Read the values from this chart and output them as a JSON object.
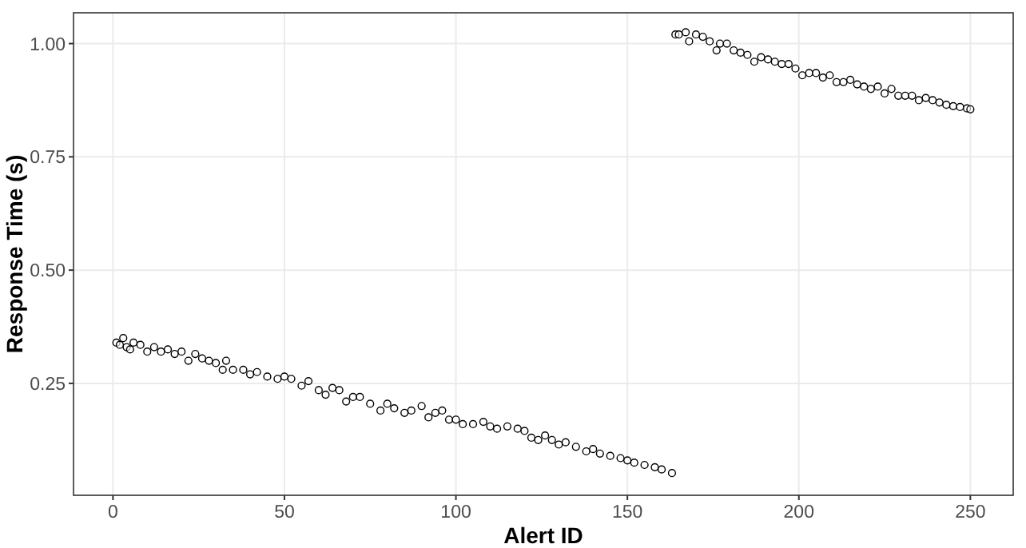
{
  "chart_data": {
    "type": "scatter",
    "xlabel": "Alert ID",
    "ylabel": "Response Time (s)",
    "xlim": [
      -11.5,
      262.5
    ],
    "ylim": [
      0.003,
      1.068
    ],
    "xticks": [
      0,
      50,
      100,
      150,
      200,
      250
    ],
    "yticks": [
      {
        "value": 0.25,
        "label": "0.25"
      },
      {
        "value": 0.5,
        "label": "0.50"
      },
      {
        "value": 0.75,
        "label": "0.75"
      },
      {
        "value": 1,
        "label": "1.00"
      }
    ],
    "grid": true,
    "marker": "circle",
    "series": [
      {
        "color": "#000000",
        "x": [
          1,
          2,
          3,
          4,
          5,
          6,
          8,
          10,
          12,
          14,
          16,
          18,
          20,
          22,
          24,
          26,
          28,
          30,
          32,
          33,
          35,
          38,
          40,
          42,
          45,
          48,
          50,
          52,
          55,
          57,
          60,
          62,
          64,
          66,
          68,
          70,
          72,
          75,
          78,
          80,
          82,
          85,
          87,
          90,
          92,
          94,
          96,
          98,
          100,
          102,
          105,
          108,
          110,
          112,
          115,
          118,
          120,
          122,
          124,
          126,
          128,
          130,
          132,
          135,
          138,
          140,
          142,
          145,
          148,
          150,
          152,
          155,
          158,
          160,
          163,
          164,
          165,
          167,
          168,
          170,
          172,
          174,
          176,
          177,
          179,
          181,
          183,
          185,
          187,
          189,
          191,
          193,
          195,
          197,
          199,
          201,
          203,
          205,
          207,
          209,
          211,
          213,
          215,
          217,
          219,
          221,
          223,
          225,
          227,
          229,
          231,
          233,
          235,
          237,
          239,
          241,
          243,
          245,
          247,
          249,
          250
        ],
        "values": [
          0.34,
          0.335,
          0.35,
          0.33,
          0.325,
          0.34,
          0.335,
          0.32,
          0.33,
          0.32,
          0.325,
          0.315,
          0.32,
          0.3,
          0.315,
          0.305,
          0.3,
          0.295,
          0.28,
          0.3,
          0.28,
          0.28,
          0.27,
          0.275,
          0.265,
          0.26,
          0.265,
          0.26,
          0.245,
          0.255,
          0.235,
          0.225,
          0.24,
          0.235,
          0.21,
          0.22,
          0.22,
          0.205,
          0.19,
          0.205,
          0.195,
          0.185,
          0.19,
          0.2,
          0.175,
          0.185,
          0.19,
          0.17,
          0.17,
          0.16,
          0.16,
          0.165,
          0.155,
          0.15,
          0.155,
          0.15,
          0.145,
          0.13,
          0.125,
          0.135,
          0.125,
          0.115,
          0.12,
          0.11,
          0.1,
          0.105,
          0.095,
          0.09,
          0.085,
          0.08,
          0.075,
          0.07,
          0.065,
          0.06,
          0.052,
          1.02,
          1.02,
          1.025,
          1.005,
          1.02,
          1.015,
          1.005,
          0.985,
          1,
          1,
          0.985,
          0.98,
          0.975,
          0.96,
          0.97,
          0.965,
          0.96,
          0.955,
          0.955,
          0.945,
          0.93,
          0.935,
          0.935,
          0.925,
          0.93,
          0.915,
          0.915,
          0.92,
          0.91,
          0.905,
          0.9,
          0.905,
          0.89,
          0.9,
          0.885,
          0.885,
          0.885,
          0.875,
          0.88,
          0.875,
          0.87,
          0.865,
          0.862,
          0.86,
          0.857,
          0.855
        ]
      }
    ]
  }
}
